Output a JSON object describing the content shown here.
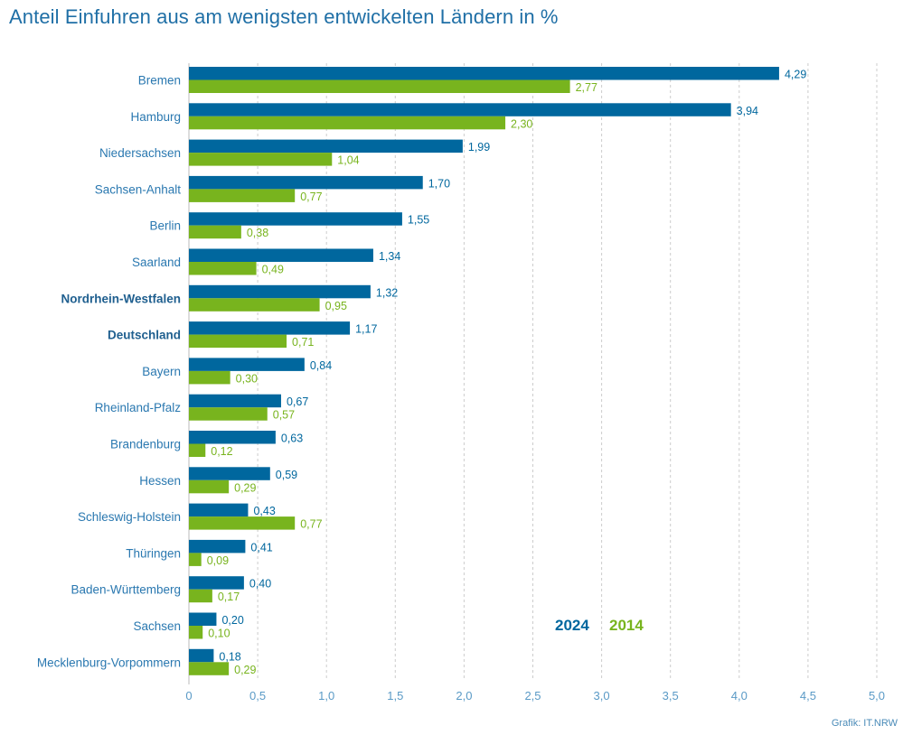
{
  "chart_data": {
    "type": "bar",
    "orientation": "horizontal",
    "title": "Anteil Einfuhren aus am wenigsten entwickelten Ländern in %",
    "xlabel": "",
    "ylabel": "",
    "xlim": [
      0,
      5.0
    ],
    "xticks": [
      "0",
      "0,5",
      "1,0",
      "1,5",
      "2,0",
      "2,5",
      "3,0",
      "3,5",
      "4,0",
      "4,5",
      "5,0"
    ],
    "grid": true,
    "legend_position": "bottom-right",
    "categories": [
      "Bremen",
      "Hamburg",
      "Niedersachsen",
      "Sachsen-Anhalt",
      "Berlin",
      "Saarland",
      "Nordrhein-Westfalen",
      "Deutschland",
      "Bayern",
      "Rheinland-Pfalz",
      "Brandenburg",
      "Hessen",
      "Schleswig-Holstein",
      "Thüringen",
      "Baden-Württemberg",
      "Sachsen",
      "Mecklenburg-Vorpommern"
    ],
    "bold_categories": [
      "Nordrhein-Westfalen",
      "Deutschland"
    ],
    "series": [
      {
        "name": "2024",
        "color": "#00679e",
        "values": [
          4.29,
          3.94,
          1.99,
          1.7,
          1.55,
          1.34,
          1.32,
          1.17,
          0.84,
          0.67,
          0.63,
          0.59,
          0.43,
          0.41,
          0.4,
          0.2,
          0.18
        ],
        "labels": [
          "4,29",
          "3,94",
          "1,99",
          "1,70",
          "1,55",
          "1,34",
          "1,32",
          "1,17",
          "0,84",
          "0,67",
          "0,63",
          "0,59",
          "0,43",
          "0,41",
          "0,40",
          "0,20",
          "0,18"
        ]
      },
      {
        "name": "2014",
        "color": "#78b41e",
        "values": [
          2.77,
          2.3,
          1.04,
          0.77,
          0.38,
          0.49,
          0.95,
          0.71,
          0.3,
          0.57,
          0.12,
          0.29,
          0.77,
          0.09,
          0.17,
          0.1,
          0.29
        ],
        "labels": [
          "2,77",
          "2,30",
          "1,04",
          "0,77",
          "0,38",
          "0,49",
          "0,95",
          "0,71",
          "0,30",
          "0,57",
          "0,12",
          "0,29",
          "0,77",
          "0,09",
          "0,17",
          "0,10",
          "0,29"
        ]
      }
    ],
    "source": "Grafik: IT.NRW"
  },
  "colors": {
    "label": "#2a78b0",
    "axis": "#5a9ac6",
    "grid": "#cccccc"
  }
}
